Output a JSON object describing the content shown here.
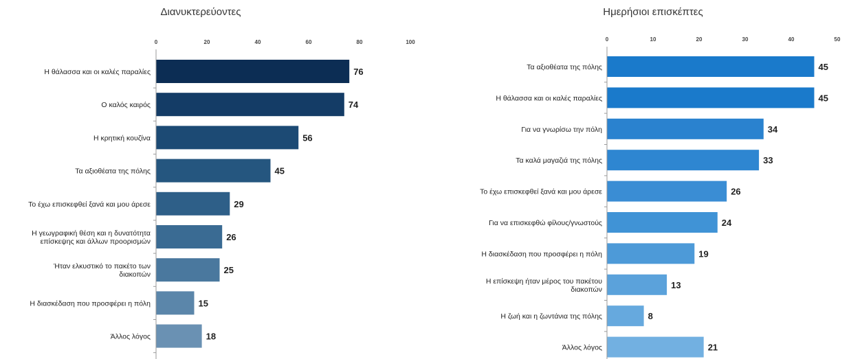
{
  "chart_data": [
    {
      "type": "bar",
      "orientation": "horizontal",
      "title": "Διανυκτερεύοντες",
      "xlim": [
        0,
        100
      ],
      "ticks": [
        0,
        20,
        40,
        60,
        80,
        100
      ],
      "tick_labels": [
        "0",
        "20",
        "40",
        "60",
        "80",
        "100"
      ],
      "grid": false,
      "categories": [
        [
          "Η θάλασσα και οι καλές παραλίες"
        ],
        [
          "Ο καλός καιρός"
        ],
        [
          "Η κρητική κουζίνα"
        ],
        [
          "Τα αξιοθέατα της πόλης"
        ],
        [
          "Το έχω επισκεφθεί ξανά και μου άρεσε"
        ],
        [
          "Η γεωγραφική θέση και η δυνατότητα",
          "επίσκεψης και άλλων προορισμών"
        ],
        [
          "Ήταν ελκυστικό το πακέτο των",
          "διακοπών"
        ],
        [
          "Η διασκέδαση που προσφέρει η πόλη"
        ],
        [
          "Άλλος λόγος"
        ]
      ],
      "values": [
        76,
        74,
        56,
        45,
        29,
        26,
        25,
        15,
        18
      ],
      "colors": [
        "#0c2d54",
        "#143c66",
        "#1c4a74",
        "#25567f",
        "#2e5f88",
        "#3a6b93",
        "#4a789e",
        "#5b86aa",
        "#6a91b3"
      ]
    },
    {
      "type": "bar",
      "orientation": "horizontal",
      "title": "Ημερήσιοι επισκέπτες",
      "xlim": [
        0,
        50
      ],
      "ticks": [
        0,
        10,
        20,
        30,
        40,
        50
      ],
      "tick_labels": [
        "0",
        "10",
        "20",
        "30",
        "40",
        "50"
      ],
      "grid": false,
      "categories": [
        [
          "Τα αξιοθέατα της πόλης"
        ],
        [
          "Η θάλασσα και οι καλές παραλίες"
        ],
        [
          "Για να γνωρίσω την πόλη"
        ],
        [
          "Τα καλά μαγαζιά της πόλης"
        ],
        [
          "Το έχω επισκεφθεί ξανά και μου άρεσε"
        ],
        [
          "Για να επισκεφθώ φίλους/γνωστούς"
        ],
        [
          "Η διασκέδαση που προσφέρει η πόλη"
        ],
        [
          "Η επίσκεψη ήταν μέρος του πακέτου",
          "διακοπών"
        ],
        [
          "Η ζωή και η ζωντάνια της πόλης"
        ],
        [
          "Άλλος λόγος"
        ]
      ],
      "values": [
        45,
        45,
        34,
        33,
        26,
        24,
        19,
        13,
        8,
        21
      ],
      "colors": [
        "#1a7acb",
        "#1a7acb",
        "#2a82cf",
        "#2e86d1",
        "#3a8dd4",
        "#4093d6",
        "#4d9ad8",
        "#5ba2db",
        "#66a9de",
        "#72b0e1"
      ]
    }
  ]
}
